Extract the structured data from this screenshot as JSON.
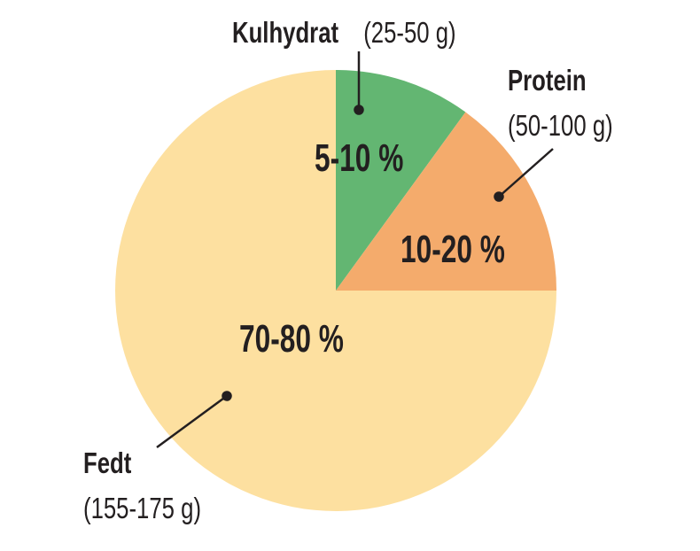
{
  "chart_data": {
    "type": "pie",
    "start_angle": "top, clockwise",
    "slices": [
      {
        "name": "Kulhydrat",
        "range": "(25-50 g)",
        "percent_label": "5-10 %",
        "value": 10,
        "color": "#63b672"
      },
      {
        "name": "Protein",
        "range": "(50-100 g)",
        "percent_label": "10-20 %",
        "value": 15,
        "color": "#f4ab6c"
      },
      {
        "name": "Fedt",
        "range": "(155-175 g)",
        "percent_label": "70-80 %",
        "value": 75,
        "color": "#fde0a0"
      }
    ]
  }
}
